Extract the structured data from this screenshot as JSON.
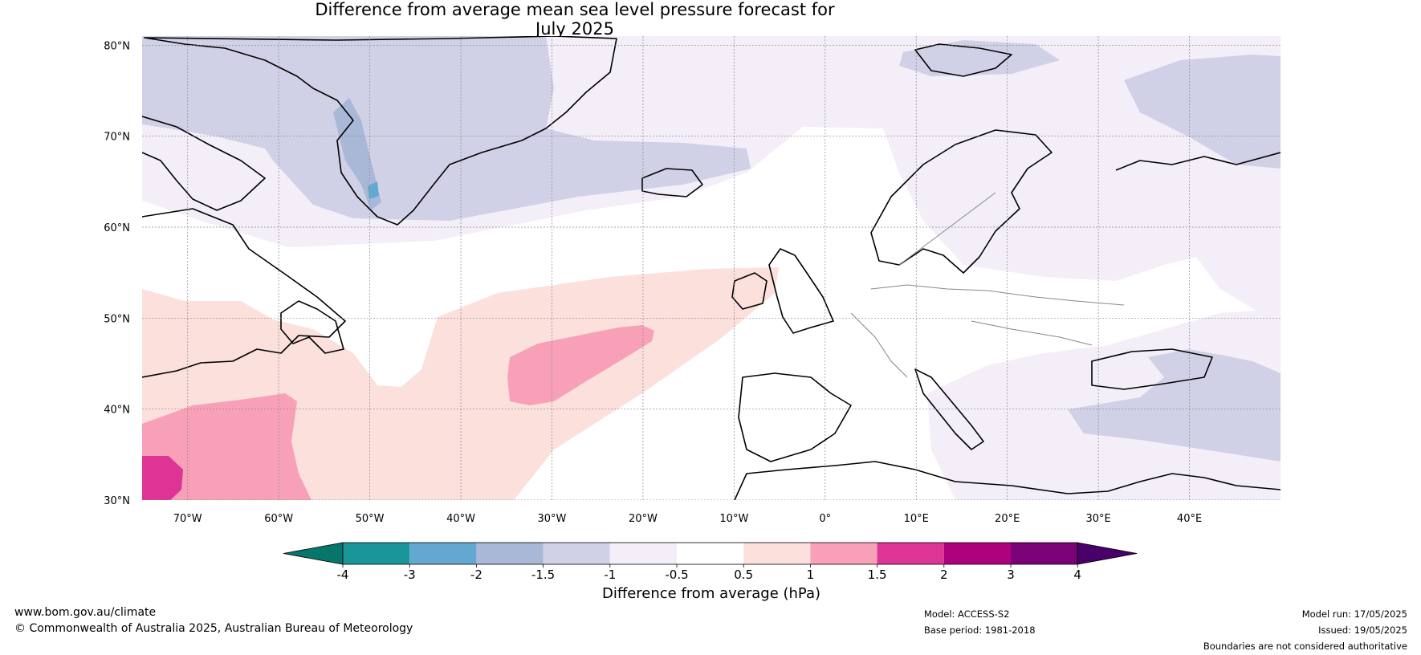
{
  "title": {
    "line1": "Difference from average mean sea level pressure forecast for",
    "line2": "July 2025"
  },
  "map": {
    "lat_labels": [
      "80°N",
      "70°N",
      "60°N",
      "50°N",
      "40°N",
      "30°N"
    ],
    "lon_labels": [
      "70°W",
      "60°W",
      "50°W",
      "40°W",
      "30°W",
      "20°W",
      "10°W",
      "0°",
      "10°E",
      "20°E",
      "30°E",
      "40°E"
    ],
    "extent": {
      "lon_min": -75,
      "lon_max": 50,
      "lat_min": 30,
      "lat_max": 81
    }
  },
  "colorbar": {
    "ticks": [
      "-4",
      "-3",
      "-2",
      "-1.5",
      "-1",
      "-0.5",
      "0.5",
      "1",
      "1.5",
      "2",
      "3",
      "4"
    ],
    "colors": [
      "#06756a",
      "#1a9699",
      "#63a8d0",
      "#a9b8d6",
      "#d0d1e6",
      "#f3eef7",
      "#ffffff",
      "#fbe0dc",
      "#f8a0b8",
      "#dd3496",
      "#ae017e",
      "#7a0177",
      "#49006a"
    ],
    "label": "Difference from average (hPa)"
  },
  "footer": {
    "website": "www.bom.gov.au/climate",
    "copyright": "© Commonwealth of Australia 2025, Australian Bureau of Meteorology",
    "model": "Model: ACCESS-S2",
    "base_period": "Base period: 1981-2018",
    "model_run": "Model run: 17/05/2025",
    "issued": "Issued: 19/05/2025",
    "disclaimer": "Boundaries are not considered authoritative"
  }
}
